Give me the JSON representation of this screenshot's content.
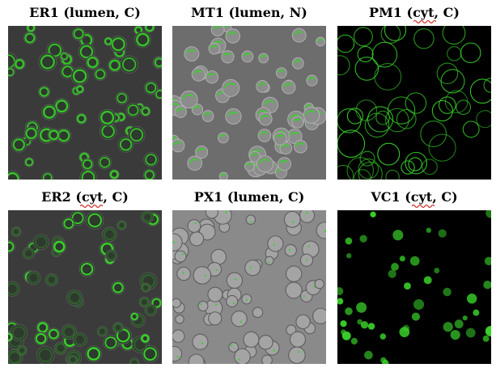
{
  "figure": {
    "panels": [
      {
        "id": "er1",
        "title": "ER1 (lumen, C)",
        "style": "ring",
        "background": "#3a3a3a",
        "underline": false
      },
      {
        "id": "mt1",
        "title": "MT1 (lumen, N)",
        "style": "mito",
        "background": "#6d6d6d",
        "underline": false
      },
      {
        "id": "pm1",
        "title": "PM1 (cyt, C)",
        "style": "membrane",
        "background": "#000000",
        "underline": true
      },
      {
        "id": "er2",
        "title": "ER2 (cyt, C)",
        "style": "ring-sparse",
        "background": "#3b3b3b",
        "underline": true
      },
      {
        "id": "px1",
        "title": "PX1 (lumen, C)",
        "style": "dots",
        "background": "#8a8a8a",
        "underline": false
      },
      {
        "id": "vc1",
        "title": "VC1 (cyt, C)",
        "style": "vacuole",
        "background": "#000000",
        "underline": true
      }
    ],
    "fluorescence_color": "#39d12a"
  }
}
